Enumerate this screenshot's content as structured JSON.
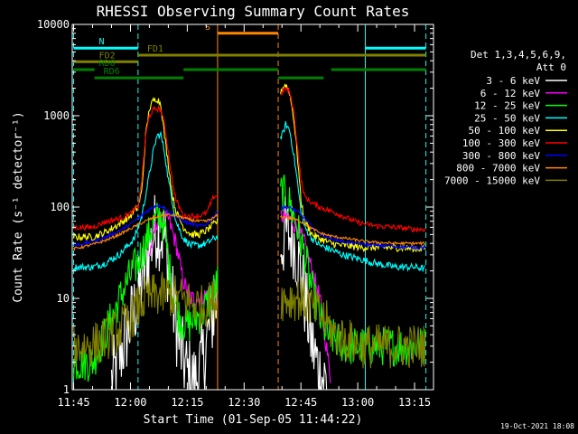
{
  "chart_data": {
    "type": "line",
    "title": "RHESSI Observing Summary Count Rates",
    "xlabel": "Start Time (01-Sep-05 11:44:22)",
    "ylabel": "Count Rate (s⁻¹ detector⁻¹)",
    "yscale": "log",
    "ylim": [
      1,
      10000
    ],
    "xlim_minutes": [
      -0.37,
      95
    ],
    "x_unit": "minutes after 11:45 UT",
    "x_ticks": [
      0,
      15,
      30,
      45,
      60,
      75,
      90
    ],
    "x_tick_labels": [
      "11:45",
      "12:00",
      "12:15",
      "12:30",
      "12:45",
      "13:00",
      "13:15"
    ],
    "y_ticks": [
      1,
      10,
      100,
      1000,
      10000
    ],
    "y_tick_labels": [
      "1",
      "10",
      "100",
      "1000",
      "10000"
    ],
    "legend_header": [
      "Det 1,3,4,5,6,9,",
      "Att 0"
    ],
    "legend_position": "right",
    "footer_date": "19-Oct-2021 18:08",
    "flags": [
      {
        "label": "N",
        "color": "#00ffff",
        "level": 5500,
        "segments": [
          [
            0,
            17
          ],
          [
            77,
            93
          ]
        ]
      },
      {
        "label": "S",
        "color": "#ff8800",
        "level": 8000,
        "segments": [
          [
            38,
            54
          ]
        ]
      },
      {
        "label": "FD1",
        "color": "#808000",
        "level": 4600,
        "segments": [
          [
            17,
            93
          ]
        ]
      },
      {
        "label": "FD2",
        "color": "#808000",
        "level": 3900,
        "segments": [
          [
            0,
            17
          ]
        ]
      },
      {
        "label": "RD0",
        "color": "#008000",
        "level": 3200,
        "segments": [
          [
            0,
            5.5
          ],
          [
            29,
            54
          ],
          [
            68,
            93
          ]
        ]
      },
      {
        "label": "RD6",
        "color": "#008000",
        "level": 2600,
        "segments": [
          [
            5.5,
            29
          ],
          [
            54,
            66
          ]
        ]
      }
    ],
    "vlines": [
      {
        "x": 0,
        "color": "#00ffff",
        "style": "dashed"
      },
      {
        "x": 17,
        "color": "#00ffff",
        "style": "dashed"
      },
      {
        "x": 77,
        "color": "#00ffff",
        "style": "solid"
      },
      {
        "x": 93,
        "color": "#00ffff",
        "style": "dashed"
      },
      {
        "x": 38,
        "color": "#ff8800",
        "style": "solid"
      },
      {
        "x": 54,
        "color": "#ff8800",
        "style": "dashed"
      }
    ],
    "gaps": [
      [
        38,
        54.5
      ]
    ],
    "series": [
      {
        "name": "3 - 6 keV",
        "color": "#ffffff",
        "noise": 0.45,
        "points": [
          [
            10,
            1.2
          ],
          [
            14,
            4
          ],
          [
            17,
            10
          ],
          [
            19,
            22
          ],
          [
            21,
            50
          ],
          [
            22,
            60
          ],
          [
            24,
            45
          ],
          [
            26,
            10
          ],
          [
            28,
            3
          ],
          [
            30,
            1.5
          ],
          [
            32,
            1.2
          ],
          [
            34,
            2
          ],
          [
            36,
            5
          ],
          [
            38,
            10
          ],
          [
            55,
            40
          ],
          [
            56,
            52
          ],
          [
            58,
            45
          ],
          [
            59,
            30
          ],
          [
            61,
            10
          ],
          [
            63,
            3
          ],
          [
            65,
            1.5
          ],
          [
            67,
            1.2
          ]
        ]
      },
      {
        "name": "6 - 12 keV",
        "color": "#ff00ff",
        "noise": 0.1,
        "points": [
          [
            20,
            30
          ],
          [
            22,
            70
          ],
          [
            25,
            75
          ],
          [
            27,
            40
          ],
          [
            29,
            15
          ],
          [
            31,
            10
          ],
          [
            33,
            10
          ],
          [
            35,
            11
          ],
          [
            37,
            14
          ],
          [
            38,
            15
          ],
          [
            55,
            80
          ],
          [
            57,
            75
          ],
          [
            59,
            60
          ],
          [
            61,
            40
          ],
          [
            63,
            20
          ],
          [
            65,
            10
          ],
          [
            66,
            5
          ],
          [
            68,
            1.2
          ]
        ]
      },
      {
        "name": "12 - 25 keV",
        "color": "#00ff00",
        "noise": 0.22,
        "points": [
          [
            0,
            2
          ],
          [
            5,
            2
          ],
          [
            10,
            6
          ],
          [
            13,
            12
          ],
          [
            15,
            18
          ],
          [
            17,
            25
          ],
          [
            19,
            40
          ],
          [
            21,
            65
          ],
          [
            23,
            80
          ],
          [
            24,
            60
          ],
          [
            26,
            12
          ],
          [
            28,
            6
          ],
          [
            30,
            5
          ],
          [
            32,
            6
          ],
          [
            34,
            7
          ],
          [
            36,
            10
          ],
          [
            38,
            15
          ],
          [
            55,
            150
          ],
          [
            57,
            110
          ],
          [
            59,
            60
          ],
          [
            61,
            30
          ],
          [
            63,
            12
          ],
          [
            65,
            6
          ],
          [
            67,
            4
          ],
          [
            72,
            3
          ],
          [
            79,
            3
          ],
          [
            85,
            3
          ],
          [
            93,
            3
          ]
        ]
      },
      {
        "name": "25 - 50 keV",
        "color": "#00ffff",
        "noise": 0.04,
        "points": [
          [
            0,
            22
          ],
          [
            5,
            22
          ],
          [
            8,
            24
          ],
          [
            12,
            30
          ],
          [
            16,
            45
          ],
          [
            18,
            80
          ],
          [
            20,
            230
          ],
          [
            21,
            400
          ],
          [
            22,
            600
          ],
          [
            23,
            620
          ],
          [
            24,
            400
          ],
          [
            25,
            200
          ],
          [
            26,
            120
          ],
          [
            27,
            70
          ],
          [
            29,
            45
          ],
          [
            31,
            38
          ],
          [
            33,
            38
          ],
          [
            35,
            40
          ],
          [
            37,
            45
          ],
          [
            38,
            48
          ],
          [
            55,
            600
          ],
          [
            56,
            800
          ],
          [
            57,
            700
          ],
          [
            58,
            400
          ],
          [
            59,
            200
          ],
          [
            60,
            90
          ],
          [
            61,
            60
          ],
          [
            63,
            45
          ],
          [
            65,
            38
          ],
          [
            68,
            34
          ],
          [
            71,
            30
          ],
          [
            74,
            28
          ],
          [
            77,
            26
          ],
          [
            80,
            24
          ],
          [
            85,
            22
          ],
          [
            90,
            22
          ],
          [
            93,
            21
          ]
        ]
      },
      {
        "name": "50 - 100 keV",
        "color": "#ffff00",
        "noise": 0.04,
        "points": [
          [
            0,
            47
          ],
          [
            5,
            47
          ],
          [
            8,
            52
          ],
          [
            12,
            65
          ],
          [
            15,
            80
          ],
          [
            17,
            100
          ],
          [
            18,
            150
          ],
          [
            19,
            600
          ],
          [
            20,
            1200
          ],
          [
            21,
            1450
          ],
          [
            22,
            1550
          ],
          [
            23,
            1350
          ],
          [
            24,
            600
          ],
          [
            25,
            300
          ],
          [
            26,
            140
          ],
          [
            27,
            90
          ],
          [
            29,
            60
          ],
          [
            31,
            50
          ],
          [
            33,
            50
          ],
          [
            35,
            55
          ],
          [
            37,
            65
          ],
          [
            38,
            70
          ],
          [
            55,
            2000
          ],
          [
            56,
            2200
          ],
          [
            57,
            1800
          ],
          [
            58,
            1000
          ],
          [
            59,
            400
          ],
          [
            60,
            120
          ],
          [
            61,
            70
          ],
          [
            63,
            50
          ],
          [
            65,
            45
          ],
          [
            68,
            40
          ],
          [
            71,
            38
          ],
          [
            74,
            37
          ],
          [
            77,
            36
          ],
          [
            80,
            36
          ],
          [
            85,
            36
          ],
          [
            90,
            35
          ],
          [
            93,
            35
          ]
        ]
      },
      {
        "name": "100 - 300 keV",
        "color": "#ff0000",
        "noise": 0.03,
        "points": [
          [
            0,
            60
          ],
          [
            5,
            60
          ],
          [
            8,
            68
          ],
          [
            12,
            75
          ],
          [
            15,
            85
          ],
          [
            17,
            100
          ],
          [
            18,
            200
          ],
          [
            19,
            600
          ],
          [
            20,
            1000
          ],
          [
            21,
            1150
          ],
          [
            22,
            1200
          ],
          [
            23,
            1150
          ],
          [
            24,
            800
          ],
          [
            25,
            400
          ],
          [
            26,
            200
          ],
          [
            27,
            120
          ],
          [
            29,
            80
          ],
          [
            31,
            80
          ],
          [
            33,
            80
          ],
          [
            35,
            85
          ],
          [
            37,
            130
          ],
          [
            38,
            135
          ],
          [
            55,
            1800
          ],
          [
            56,
            2000
          ],
          [
            57,
            1800
          ],
          [
            58,
            1200
          ],
          [
            59,
            500
          ],
          [
            60,
            200
          ],
          [
            61,
            130
          ],
          [
            63,
            110
          ],
          [
            65,
            100
          ],
          [
            68,
            90
          ],
          [
            71,
            80
          ],
          [
            74,
            70
          ],
          [
            77,
            65
          ],
          [
            80,
            62
          ],
          [
            85,
            60
          ],
          [
            90,
            57
          ],
          [
            93,
            57
          ]
        ]
      },
      {
        "name": "300 - 800 keV",
        "color": "#0000ff",
        "noise": 0.02,
        "points": [
          [
            0,
            38
          ],
          [
            3,
            40
          ],
          [
            6,
            43
          ],
          [
            9,
            48
          ],
          [
            12,
            55
          ],
          [
            15,
            65
          ],
          [
            17,
            75
          ],
          [
            19,
            88
          ],
          [
            21,
            100
          ],
          [
            22,
            105
          ],
          [
            23,
            103
          ],
          [
            24,
            98
          ],
          [
            25,
            88
          ],
          [
            27,
            78
          ],
          [
            29,
            70
          ],
          [
            31,
            65
          ],
          [
            33,
            62
          ],
          [
            35,
            64
          ],
          [
            37,
            80
          ],
          [
            38,
            90
          ],
          [
            55,
            100
          ],
          [
            57,
            98
          ],
          [
            59,
            90
          ],
          [
            61,
            75
          ],
          [
            63,
            60
          ],
          [
            65,
            50
          ],
          [
            68,
            45
          ],
          [
            71,
            42
          ],
          [
            74,
            40
          ],
          [
            77,
            39
          ],
          [
            80,
            38
          ],
          [
            85,
            37
          ],
          [
            90,
            36
          ],
          [
            93,
            36
          ]
        ]
      },
      {
        "name": "800 - 7000 keV",
        "color": "#ff8800",
        "noise": 0.015,
        "points": [
          [
            0,
            35
          ],
          [
            3,
            37
          ],
          [
            6,
            40
          ],
          [
            9,
            44
          ],
          [
            12,
            50
          ],
          [
            15,
            58
          ],
          [
            17,
            64
          ],
          [
            19,
            70
          ],
          [
            21,
            76
          ],
          [
            23,
            80
          ],
          [
            25,
            82
          ],
          [
            27,
            80
          ],
          [
            29,
            76
          ],
          [
            31,
            72
          ],
          [
            33,
            70
          ],
          [
            35,
            70
          ],
          [
            37,
            76
          ],
          [
            38,
            82
          ],
          [
            55,
            78
          ],
          [
            57,
            76
          ],
          [
            59,
            72
          ],
          [
            61,
            66
          ],
          [
            63,
            58
          ],
          [
            65,
            52
          ],
          [
            68,
            48
          ],
          [
            71,
            46
          ],
          [
            74,
            44
          ],
          [
            77,
            42
          ],
          [
            80,
            41
          ],
          [
            85,
            40
          ],
          [
            90,
            40
          ],
          [
            93,
            40
          ]
        ]
      },
      {
        "name": "7000 - 15000 keV",
        "color": "#808000",
        "noise": 0.25,
        "points": [
          [
            0,
            3
          ],
          [
            3,
            3
          ],
          [
            6,
            3.2
          ],
          [
            9,
            3.8
          ],
          [
            12,
            4.5
          ],
          [
            15,
            6
          ],
          [
            17,
            8
          ],
          [
            19,
            10
          ],
          [
            22,
            11
          ],
          [
            25,
            11
          ],
          [
            28,
            10
          ],
          [
            31,
            9
          ],
          [
            34,
            8
          ],
          [
            36,
            9
          ],
          [
            38,
            10
          ],
          [
            55,
            10
          ],
          [
            57,
            10
          ],
          [
            60,
            10
          ],
          [
            63,
            8
          ],
          [
            66,
            6
          ],
          [
            69,
            4
          ],
          [
            72,
            3.5
          ],
          [
            76,
            3
          ],
          [
            80,
            3
          ],
          [
            85,
            3
          ],
          [
            90,
            3
          ],
          [
            93,
            3
          ]
        ]
      }
    ]
  }
}
